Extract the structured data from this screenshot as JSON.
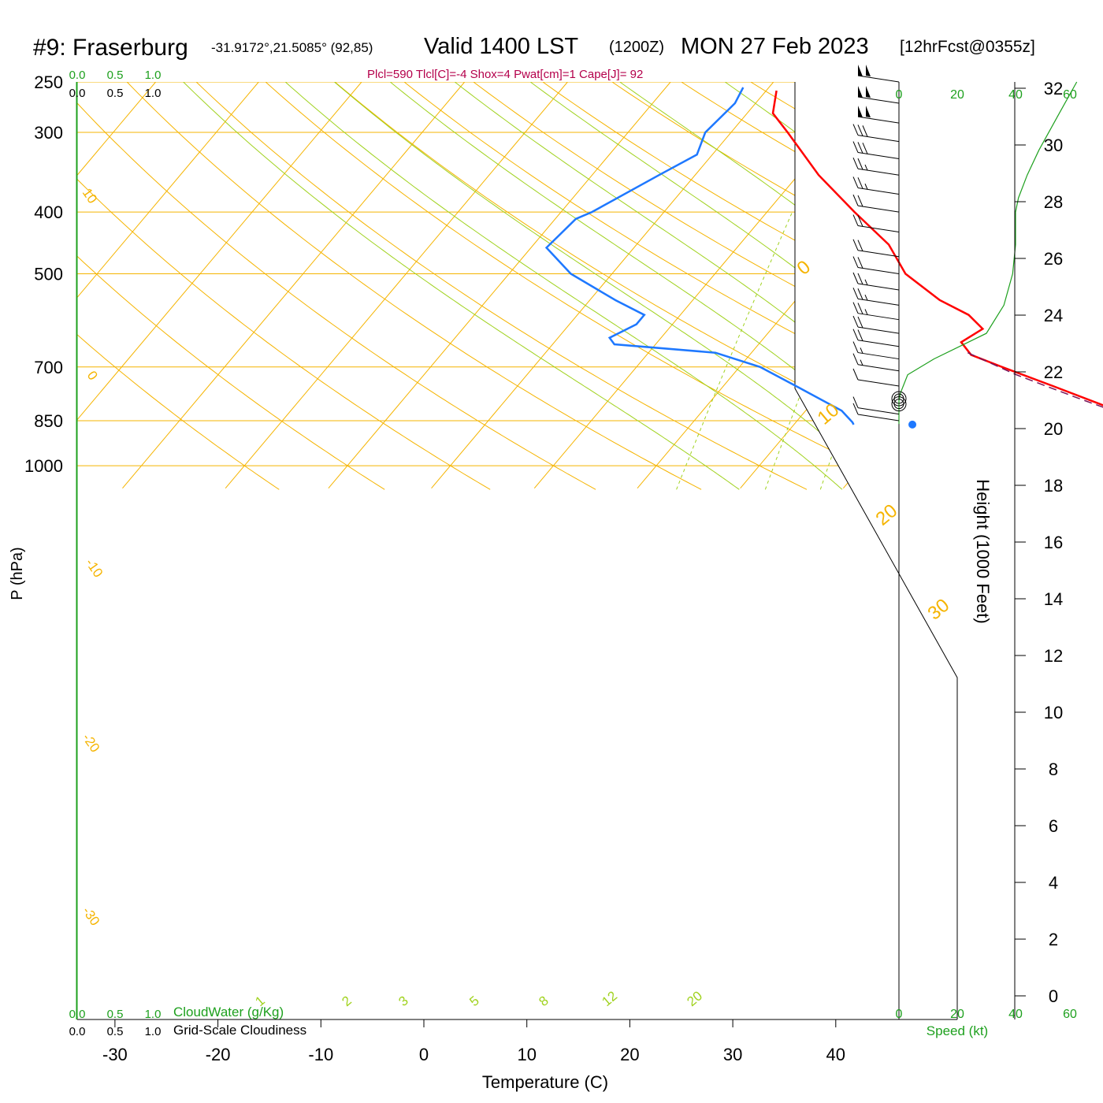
{
  "header": {
    "station": "#9: Fraserburg",
    "coords": "-31.9172°,21.5085° (92,85)",
    "valid": "Valid 1400 LST",
    "utc": "(1200Z)",
    "date": "MON 27 Feb 2023",
    "forecast": "[12hrFcst@0355z]",
    "indices": "Plcl=590 Tlcl[C]=-4 Shox=4 Pwat[cm]=1 Cape[J]= 92"
  },
  "colors": {
    "temperature": "#ff0000",
    "dewpoint": "#1e78ff",
    "isotherm_isobar": "#f5b400",
    "dry_adiabat": "#f5b400",
    "moist_adiabat": "#a0d21e",
    "mixing_ratio": "#a0d21e",
    "cloud": "#1ea01e",
    "index_text": "#b4004b",
    "parcel": "#78145a"
  },
  "chart_data": {
    "type": "skew-t",
    "xlabel": "Temperature (C)",
    "ylabel": "P (hPa)",
    "x_ticks": [
      -30,
      -20,
      -10,
      0,
      10,
      20,
      30,
      40
    ],
    "p_ticks": [
      250,
      300,
      400,
      500,
      700,
      850,
      1000
    ],
    "p_range": [
      250,
      1085
    ],
    "height_axis": {
      "label": "Height (1000 Feet)",
      "ticks": [
        0,
        2,
        4,
        6,
        8,
        10,
        12,
        14,
        16,
        18,
        20,
        22,
        24,
        26,
        28,
        30,
        32
      ]
    },
    "cloud_scales": {
      "top_ticks": [
        "0.0",
        "0.5",
        "1.0"
      ],
      "bottom_ticks": [
        "0.0",
        "0.5",
        "1.0"
      ],
      "cloudwater_label": "CloudWater (g/Kg)",
      "cloudiness_label": "Grid-Scale Cloudiness"
    },
    "speed_axis": {
      "label": "Speed (kt)",
      "ticks": [
        "0",
        "20",
        "40",
        "60"
      ]
    },
    "mixing_ratio_labels": [
      "1",
      "2",
      "3",
      "5",
      "8",
      "12",
      "20"
    ],
    "dry_adiabat_labels": [
      "10",
      "0",
      "-10",
      "-20",
      "-30",
      "0",
      "10",
      "20",
      "30"
    ],
    "temperature_profile": [
      {
        "p": 258,
        "t": -39.0
      },
      {
        "p": 280,
        "t": -37.5
      },
      {
        "p": 300,
        "t": -34.5
      },
      {
        "p": 350,
        "t": -28.0
      },
      {
        "p": 400,
        "t": -21.5
      },
      {
        "p": 450,
        "t": -15.5
      },
      {
        "p": 500,
        "t": -11.5
      },
      {
        "p": 550,
        "t": -6.0
      },
      {
        "p": 580,
        "t": -2.0
      },
      {
        "p": 610,
        "t": 0.5
      },
      {
        "p": 640,
        "t": -0.5
      },
      {
        "p": 670,
        "t": 1.5
      },
      {
        "p": 700,
        "t": 5.5
      },
      {
        "p": 750,
        "t": 12.0
      },
      {
        "p": 800,
        "t": 18.0
      },
      {
        "p": 840,
        "t": 22.5
      },
      {
        "p": 856,
        "t": 25.0
      },
      {
        "p": 862,
        "t": 25.5
      },
      {
        "p": 863,
        "t": 26.5
      }
    ],
    "dewpoint_profile": [
      {
        "p": 255,
        "t": -42.5
      },
      {
        "p": 270,
        "t": -42.0
      },
      {
        "p": 300,
        "t": -42.5
      },
      {
        "p": 325,
        "t": -41.5
      },
      {
        "p": 350,
        "t": -43.5
      },
      {
        "p": 400,
        "t": -47.0
      },
      {
        "p": 410,
        "t": -48.0
      },
      {
        "p": 455,
        "t": -48.5
      },
      {
        "p": 500,
        "t": -44.0
      },
      {
        "p": 550,
        "t": -37.5
      },
      {
        "p": 580,
        "t": -33.5
      },
      {
        "p": 600,
        "t": -33.5
      },
      {
        "p": 630,
        "t": -35.0
      },
      {
        "p": 645,
        "t": -34.0
      },
      {
        "p": 665,
        "t": -23.5
      },
      {
        "p": 700,
        "t": -18.0
      },
      {
        "p": 760,
        "t": -12.0
      },
      {
        "p": 820,
        "t": -6.5
      },
      {
        "p": 855,
        "t": -4.5
      },
      {
        "p": 862,
        "t": -4.2
      }
    ],
    "parcel_path": [
      {
        "p": 665,
        "t": 1.0
      },
      {
        "p": 720,
        "t": 7.5
      },
      {
        "p": 780,
        "t": 15.0
      },
      {
        "p": 830,
        "t": 21.0
      },
      {
        "p": 862,
        "t": 25.5
      }
    ],
    "surface_temperature": {
      "p": 862,
      "t": 27.0
    },
    "surface_dewpoint": {
      "p": 862,
      "t": 1.5
    },
    "wind_speed_profile": [
      {
        "p": 250,
        "kt": 61
      },
      {
        "p": 280,
        "kt": 55
      },
      {
        "p": 320,
        "kt": 48
      },
      {
        "p": 350,
        "kt": 44
      },
      {
        "p": 380,
        "kt": 41
      },
      {
        "p": 400,
        "kt": 40
      },
      {
        "p": 450,
        "kt": 40
      },
      {
        "p": 500,
        "kt": 39
      },
      {
        "p": 560,
        "kt": 36
      },
      {
        "p": 620,
        "kt": 30
      },
      {
        "p": 680,
        "kt": 12
      },
      {
        "p": 720,
        "kt": 3
      },
      {
        "p": 770,
        "kt": 0.5
      },
      {
        "p": 790,
        "kt": 0
      },
      {
        "p": 860,
        "kt": 0
      }
    ],
    "wind_barbs": [
      {
        "p": 250,
        "kt": 100
      },
      {
        "p": 270,
        "kt": 100
      },
      {
        "p": 290,
        "kt": 100
      },
      {
        "p": 310,
        "kt": 30
      },
      {
        "p": 330,
        "kt": 30
      },
      {
        "p": 350,
        "kt": 25
      },
      {
        "p": 375,
        "kt": 25
      },
      {
        "p": 400,
        "kt": 20
      },
      {
        "p": 430,
        "kt": 20
      },
      {
        "p": 470,
        "kt": 20
      },
      {
        "p": 500,
        "kt": 20
      },
      {
        "p": 530,
        "kt": 25
      },
      {
        "p": 560,
        "kt": 25
      },
      {
        "p": 590,
        "kt": 25
      },
      {
        "p": 620,
        "kt": 20
      },
      {
        "p": 650,
        "kt": 20
      },
      {
        "p": 680,
        "kt": 15
      },
      {
        "p": 710,
        "kt": 15
      },
      {
        "p": 750,
        "kt": 10
      },
      {
        "p": 785,
        "kt": 0
      },
      {
        "p": 800,
        "kt": 0
      },
      {
        "p": 830,
        "kt": 10
      },
      {
        "p": 850,
        "kt": 10
      }
    ]
  }
}
